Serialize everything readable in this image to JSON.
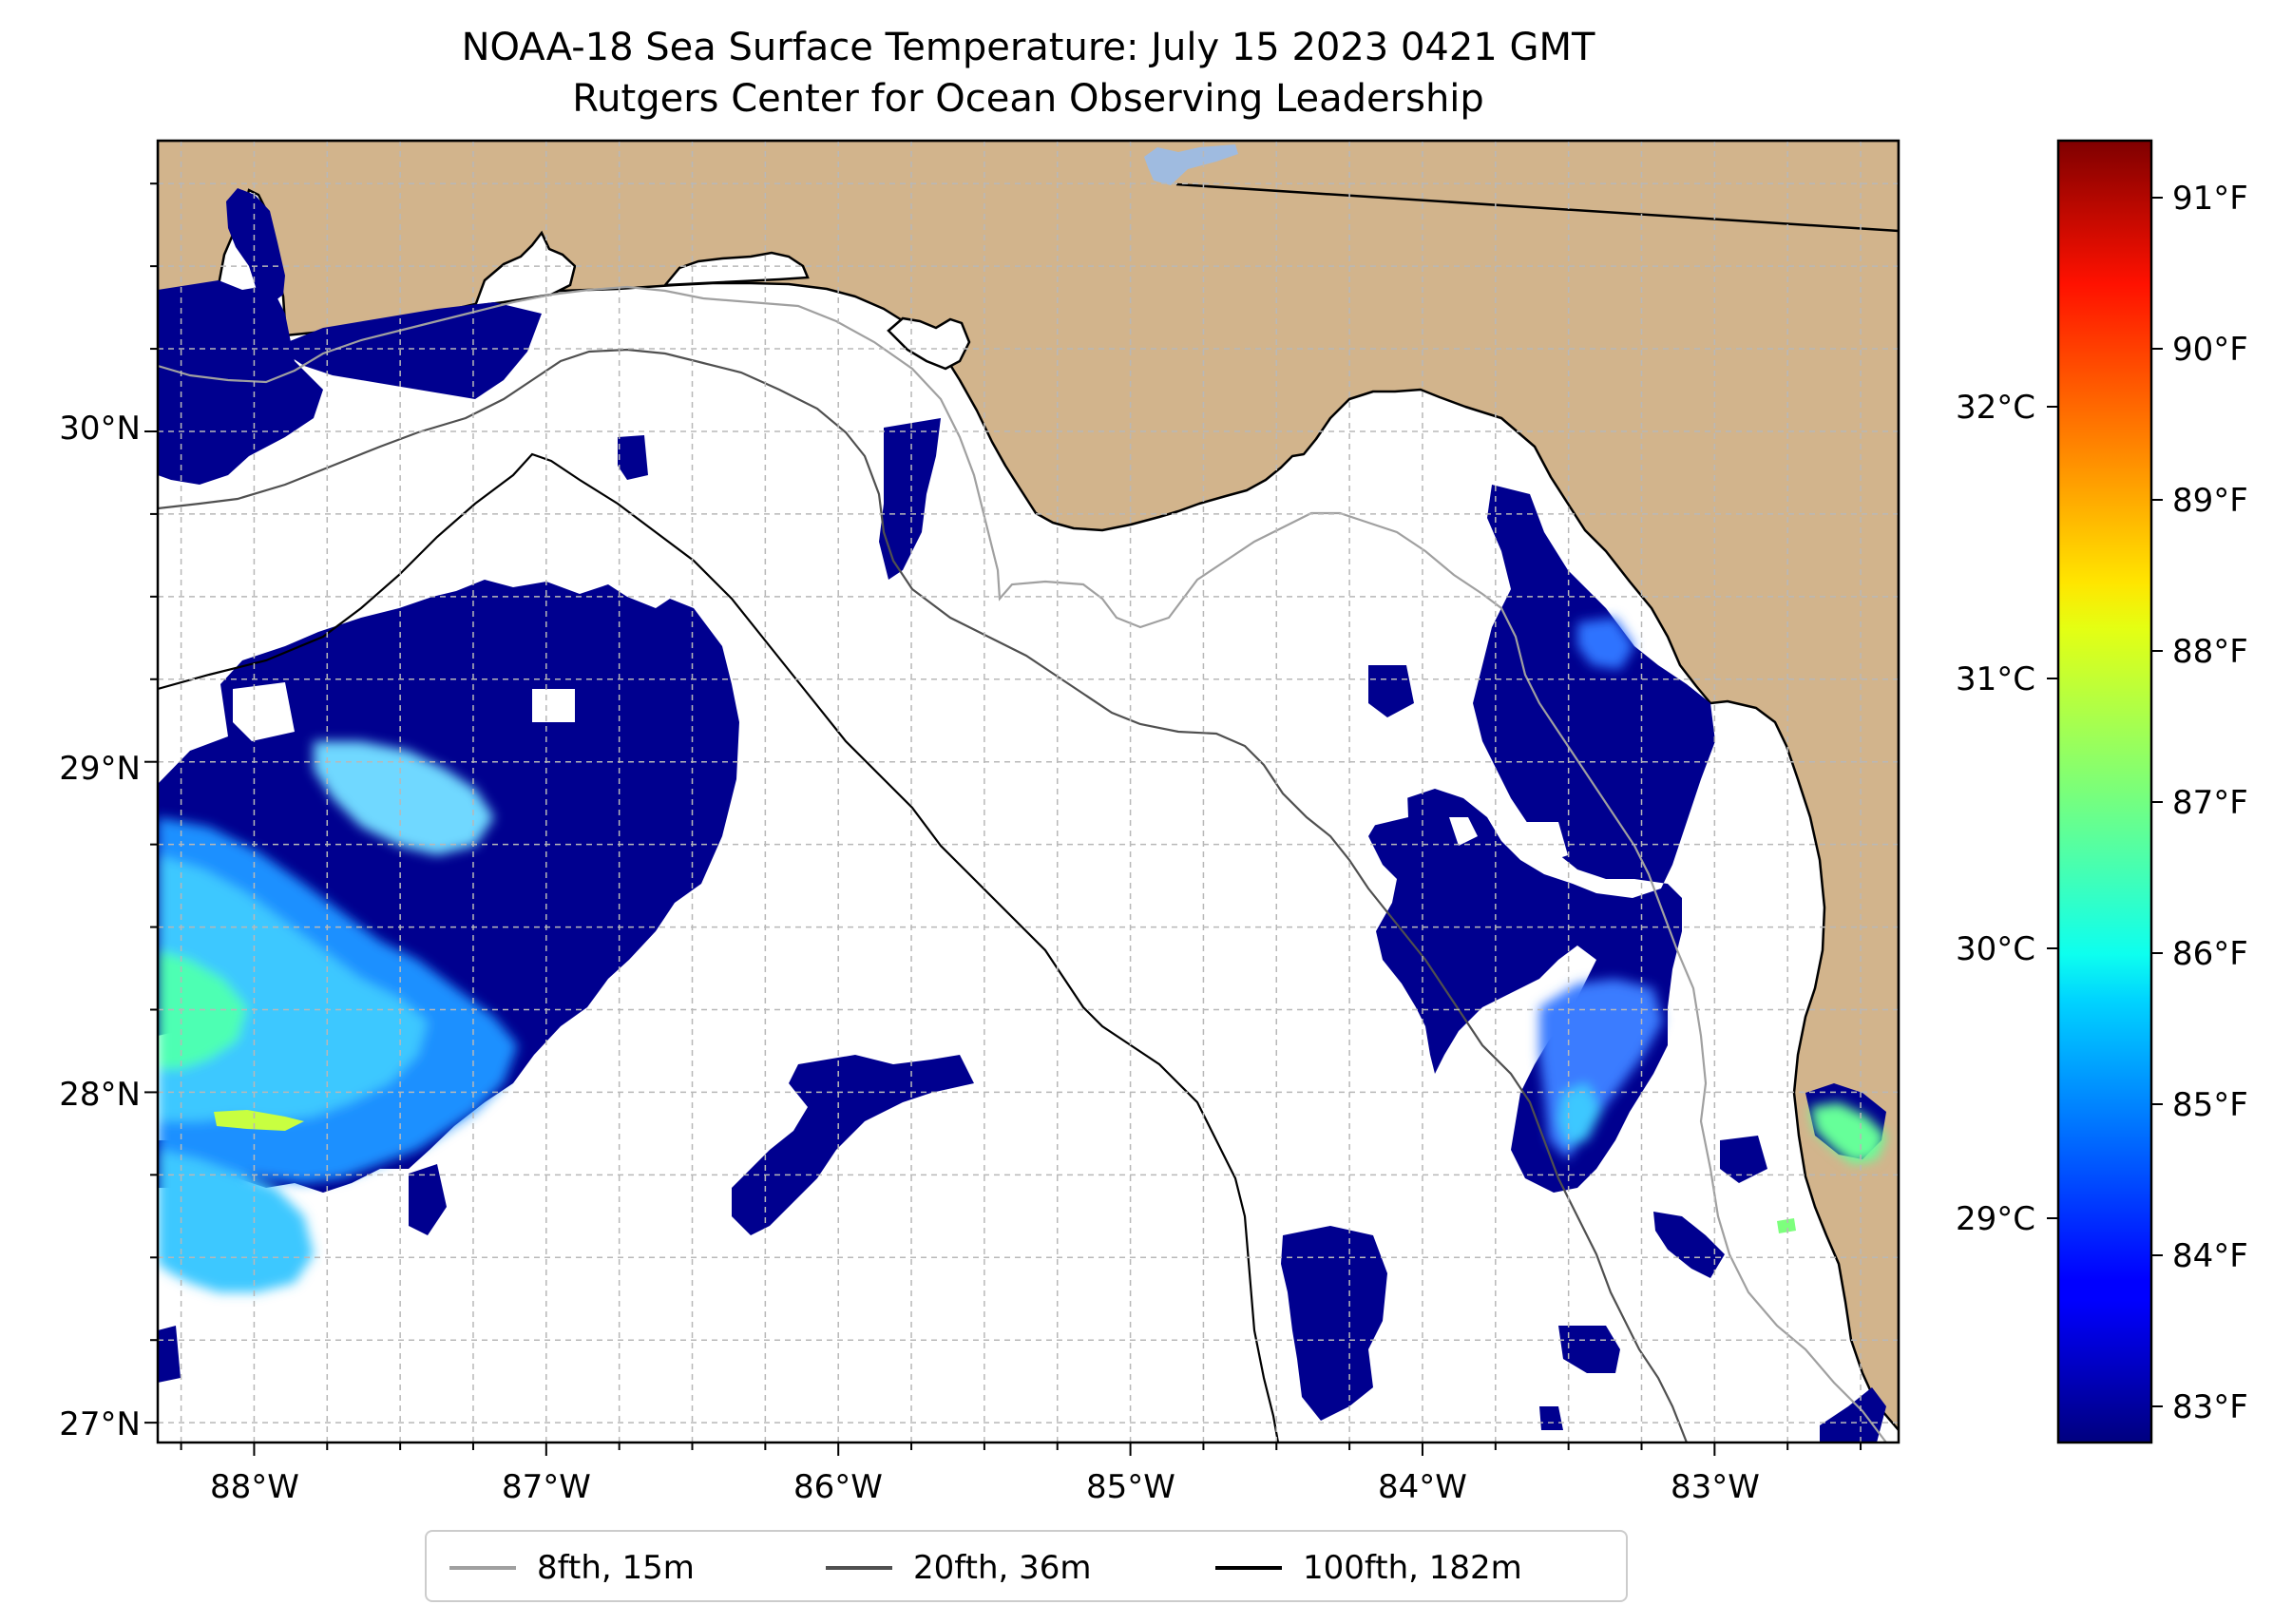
{
  "title": {
    "line1": "NOAA-18 Sea Surface Temperature: July 15 2023 0421 GMT",
    "line2": "Rutgers Center for Ocean Observing Leadership"
  },
  "map": {
    "lon_range": [
      -88.33,
      -82.37
    ],
    "lat_range": [
      26.94,
      30.88
    ],
    "lon_ticks": [
      "88°W",
      "87°W",
      "86°W",
      "85°W",
      "84°W",
      "83°W"
    ],
    "lat_ticks": [
      "30°N",
      "29°N",
      "28°N",
      "27°N"
    ],
    "land_color": "#d2b48c",
    "cloud_mask_color": "#ffffff",
    "grid": true
  },
  "colorbar": {
    "colormap": "jet",
    "fahrenheit_ticks": [
      "91°F",
      "90°F",
      "89°F",
      "88°F",
      "87°F",
      "86°F",
      "85°F",
      "84°F",
      "83°F"
    ],
    "celsius_ticks": [
      "32°C",
      "31°C",
      "30°C",
      "29°C"
    ],
    "fahrenheit_range": [
      82.7,
      91.3
    ]
  },
  "legend": {
    "items": [
      {
        "label": "8fth, 15m",
        "color": "#a0a0a0"
      },
      {
        "label": "20fth, 36m",
        "color": "#505050"
      },
      {
        "label": "100fth, 182m",
        "color": "#000000"
      }
    ]
  }
}
